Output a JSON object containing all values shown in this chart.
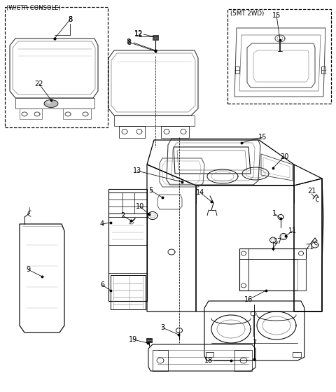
{
  "bg": "#ffffff",
  "fw": 4.8,
  "fh": 5.6,
  "dpi": 100,
  "lw": 0.7,
  "label_fs": 7.0,
  "box1_label": "(W/CTR CONSOLE)",
  "box2_label": "(5MT 2WD)"
}
